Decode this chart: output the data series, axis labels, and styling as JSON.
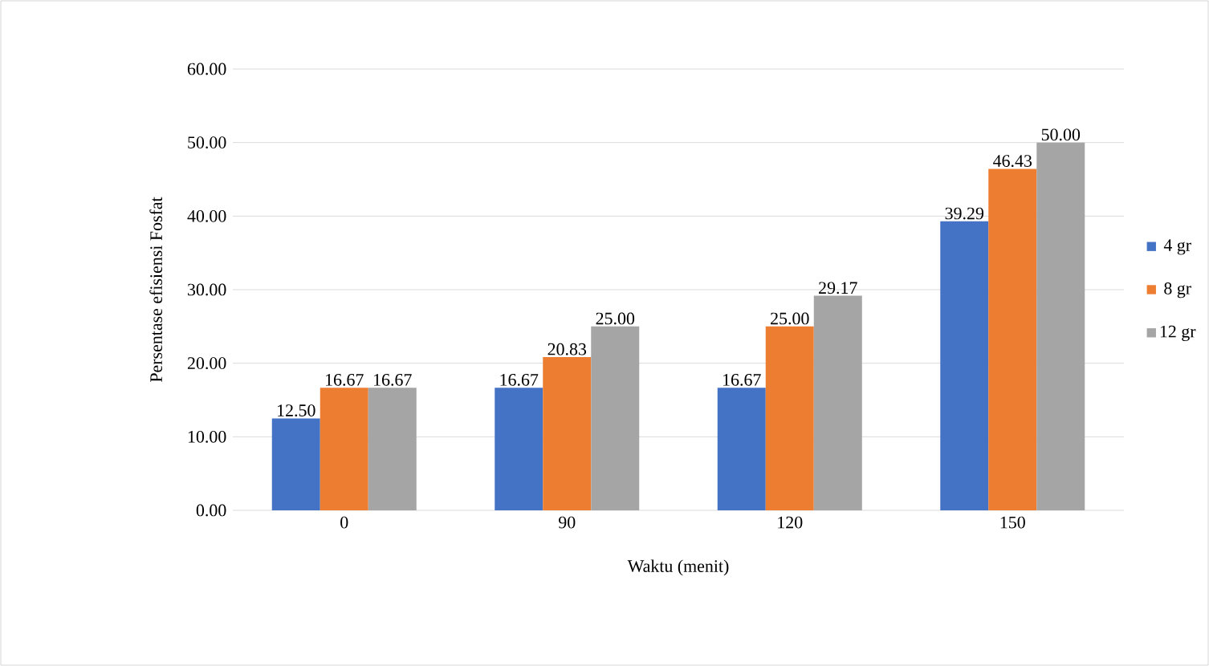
{
  "chart_data": {
    "type": "bar",
    "xlabel": "Waktu (menit)",
    "ylabel": "Persentase efisiensi Fosfat",
    "categories": [
      "0",
      "90",
      "120",
      "150"
    ],
    "series": [
      {
        "name": "4 gr",
        "color": "#4472c4",
        "values": [
          12.5,
          16.67,
          16.67,
          39.29
        ],
        "value_labels": [
          "12.50",
          "16.67",
          "16.67",
          "39.29"
        ]
      },
      {
        "name": "8 gr",
        "color": "#ed7d31",
        "values": [
          16.67,
          20.83,
          25.0,
          46.43
        ],
        "value_labels": [
          "16.67",
          "20.83",
          "25.00",
          "46.43"
        ]
      },
      {
        "name": "12 gr",
        "color": "#a5a5a5",
        "values": [
          16.67,
          25.0,
          29.17,
          50.0
        ],
        "value_labels": [
          "16.67",
          "25.00",
          "29.17",
          "50.00"
        ]
      }
    ],
    "ylim": [
      0,
      60
    ],
    "yticks": [
      {
        "value": 0,
        "label": "0.00"
      },
      {
        "value": 10,
        "label": "10.00"
      },
      {
        "value": 20,
        "label": "20.00"
      },
      {
        "value": 30,
        "label": "30.00"
      },
      {
        "value": 40,
        "label": "40.00"
      },
      {
        "value": 50,
        "label": "50.00"
      },
      {
        "value": 60,
        "label": "60.00"
      }
    ],
    "grid": "y",
    "legend": "right"
  }
}
